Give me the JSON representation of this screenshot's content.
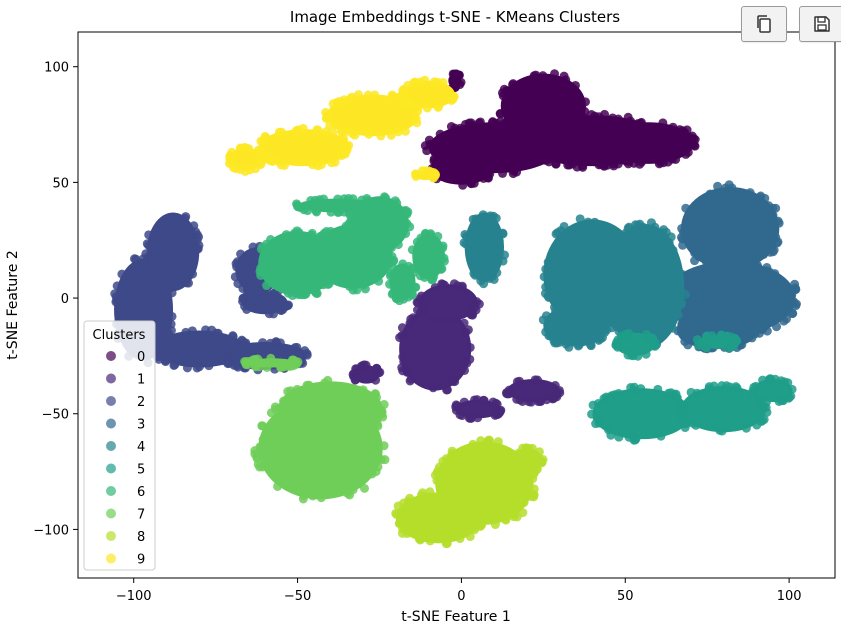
{
  "toolbar": {
    "copy_icon": "copy-icon",
    "save_icon": "save-icon"
  },
  "chart_data": {
    "type": "scatter",
    "title": "Image Embeddings t-SNE - KMeans Clusters",
    "xlabel": "t-SNE Feature 1",
    "ylabel": "t-SNE Feature 2",
    "xlim": [
      -117,
      114
    ],
    "ylim": [
      -121,
      115
    ],
    "xticks": [
      -100,
      -50,
      0,
      50,
      100
    ],
    "yticks": [
      -100,
      -50,
      0,
      50,
      100
    ],
    "xtick_labels": [
      "−100",
      "−50",
      "0",
      "50",
      "100"
    ],
    "ytick_labels": [
      "−100",
      "−50",
      "0",
      "50",
      "100"
    ],
    "grid": false,
    "legend": {
      "title": "Clusters",
      "placement": "lower-left",
      "entries": [
        "0",
        "1",
        "2",
        "3",
        "4",
        "5",
        "6",
        "7",
        "8",
        "9"
      ]
    },
    "colors": [
      "#440154",
      "#482878",
      "#3e4989",
      "#31688e",
      "#26828e",
      "#1f9e89",
      "#35b779",
      "#6ece58",
      "#b5de2b",
      "#fde725"
    ],
    "series": [
      {
        "name": "0",
        "clusters": [
          {
            "x": 25,
            "y": 83,
            "rx": 13,
            "ry": 14
          },
          {
            "x": 10,
            "y": 65,
            "rx": 20,
            "ry": 11
          },
          {
            "x": 40,
            "y": 68,
            "rx": 22,
            "ry": 11
          },
          {
            "x": 57,
            "y": 67,
            "rx": 14,
            "ry": 9
          },
          {
            "x": 0,
            "y": 55,
            "rx": 9,
            "ry": 6
          },
          {
            "x": -2,
            "y": 94,
            "rx": 2,
            "ry": 3
          }
        ]
      },
      {
        "name": "1",
        "clusters": [
          {
            "x": -8,
            "y": -22,
            "rx": 11,
            "ry": 18
          },
          {
            "x": -4,
            "y": -2,
            "rx": 9,
            "ry": 8
          },
          {
            "x": 5,
            "y": -48,
            "rx": 7,
            "ry": 4
          },
          {
            "x": 22,
            "y": -40,
            "rx": 8,
            "ry": 5
          },
          {
            "x": -29,
            "y": -33,
            "rx": 4,
            "ry": 4
          }
        ]
      },
      {
        "name": "2",
        "clusters": [
          {
            "x": -88,
            "y": 20,
            "rx": 8,
            "ry": 17
          },
          {
            "x": -97,
            "y": -5,
            "rx": 9,
            "ry": 22
          },
          {
            "x": -80,
            "y": -22,
            "rx": 14,
            "ry": 8
          },
          {
            "x": -60,
            "y": -25,
            "rx": 13,
            "ry": 6
          },
          {
            "x": -62,
            "y": 12,
            "rx": 7,
            "ry": 10
          },
          {
            "x": -60,
            "y": -2,
            "rx": 7,
            "ry": 5
          }
        ]
      },
      {
        "name": "3",
        "clusters": [
          {
            "x": 82,
            "y": 30,
            "rx": 15,
            "ry": 18
          },
          {
            "x": 82,
            "y": 0,
            "rx": 20,
            "ry": 16
          },
          {
            "x": 78,
            "y": -15,
            "rx": 12,
            "ry": 7
          }
        ]
      },
      {
        "name": "4",
        "clusters": [
          {
            "x": 40,
            "y": 10,
            "rx": 15,
            "ry": 24
          },
          {
            "x": 56,
            "y": 5,
            "rx": 12,
            "ry": 27
          },
          {
            "x": 35,
            "y": -12,
            "rx": 10,
            "ry": 9
          },
          {
            "x": 7,
            "y": 22,
            "rx": 6,
            "ry": 15
          }
        ]
      },
      {
        "name": "5",
        "clusters": [
          {
            "x": 55,
            "y": -50,
            "rx": 15,
            "ry": 11
          },
          {
            "x": 80,
            "y": -48,
            "rx": 13,
            "ry": 10
          },
          {
            "x": 95,
            "y": -40,
            "rx": 6,
            "ry": 5
          },
          {
            "x": 53,
            "y": -20,
            "rx": 6,
            "ry": 5
          },
          {
            "x": 78,
            "y": -19,
            "rx": 6,
            "ry": 3
          }
        ]
      },
      {
        "name": "6",
        "clusters": [
          {
            "x": -50,
            "y": 15,
            "rx": 12,
            "ry": 14
          },
          {
            "x": -33,
            "y": 18,
            "rx": 12,
            "ry": 14
          },
          {
            "x": -25,
            "y": 32,
            "rx": 9,
            "ry": 12
          },
          {
            "x": -38,
            "y": 40,
            "rx": 12,
            "ry": 3
          },
          {
            "x": -10,
            "y": 18,
            "rx": 5,
            "ry": 10
          },
          {
            "x": -18,
            "y": 7,
            "rx": 4,
            "ry": 8
          }
        ]
      },
      {
        "name": "7",
        "clusters": [
          {
            "x": -43,
            "y": -65,
            "rx": 19,
            "ry": 22
          },
          {
            "x": -40,
            "y": -48,
            "rx": 16,
            "ry": 12
          },
          {
            "x": -58,
            "y": -28,
            "rx": 8,
            "ry": 2
          }
        ]
      },
      {
        "name": "8",
        "clusters": [
          {
            "x": 7,
            "y": -80,
            "rx": 15,
            "ry": 18
          },
          {
            "x": -7,
            "y": -95,
            "rx": 13,
            "ry": 11
          },
          {
            "x": 20,
            "y": -70,
            "rx": 5,
            "ry": 5
          }
        ]
      },
      {
        "name": "9",
        "clusters": [
          {
            "x": -48,
            "y": 65,
            "rx": 14,
            "ry": 8
          },
          {
            "x": -27,
            "y": 79,
            "rx": 14,
            "ry": 9
          },
          {
            "x": -10,
            "y": 88,
            "rx": 8,
            "ry": 6
          },
          {
            "x": -66,
            "y": 60,
            "rx": 5,
            "ry": 5
          },
          {
            "x": -11,
            "y": 53,
            "rx": 3,
            "ry": 2
          }
        ]
      }
    ]
  }
}
